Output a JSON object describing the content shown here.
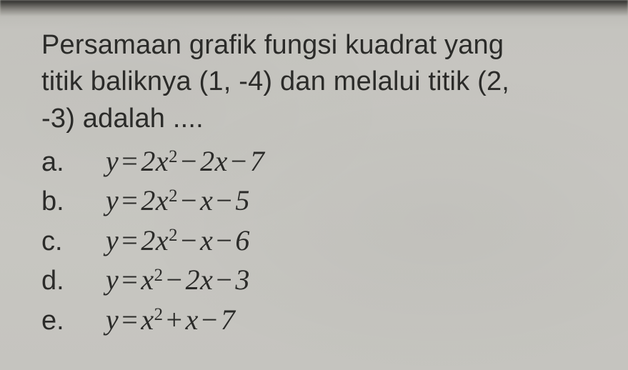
{
  "background_color": "#c5c4bf",
  "text_color": "#2b2b29",
  "font_family": "Arial, Helvetica, sans-serif",
  "question_fontsize": 38,
  "formula_fontsize": 40,
  "question": {
    "line1": "Persamaan grafik fungsi kuadrat yang",
    "line2": "titik baliknya (1, -4) dan melalui titik (2,",
    "line3": "-3) adalah ...."
  },
  "options": [
    {
      "letter": "a.",
      "var": "y",
      "eq": "=",
      "rhs": "2x² − 2x − 7",
      "coef2": "2",
      "coef1": "2",
      "const": "7",
      "sign1": "−",
      "sign2": "−",
      "raw": "y = 2x^2 - 2x - 7"
    },
    {
      "letter": "b.",
      "var": "y",
      "eq": "=",
      "rhs": "2x² − x − 5",
      "coef2": "2",
      "coef1": "",
      "const": "5",
      "sign1": "−",
      "sign2": "−",
      "raw": "y = 2x^2 - x - 5"
    },
    {
      "letter": "c.",
      "var": "y",
      "eq": "=",
      "rhs": "2x² − x − 6",
      "coef2": "2",
      "coef1": "",
      "const": "6",
      "sign1": "−",
      "sign2": "−",
      "raw": "y = 2x^2 - x - 6"
    },
    {
      "letter": "d.",
      "var": "y",
      "eq": "=",
      "rhs": "x² − 2x − 3",
      "coef2": "",
      "coef1": "2",
      "const": "3",
      "sign1": "−",
      "sign2": "−",
      "raw": "y = x^2 - 2x - 3"
    },
    {
      "letter": "e.",
      "var": "y",
      "eq": "=",
      "rhs": "x² + x − 7",
      "coef2": "",
      "coef1": "",
      "const": "7",
      "sign1": "+",
      "sign2": "−",
      "raw": "y = x^2 + x - 7"
    }
  ]
}
